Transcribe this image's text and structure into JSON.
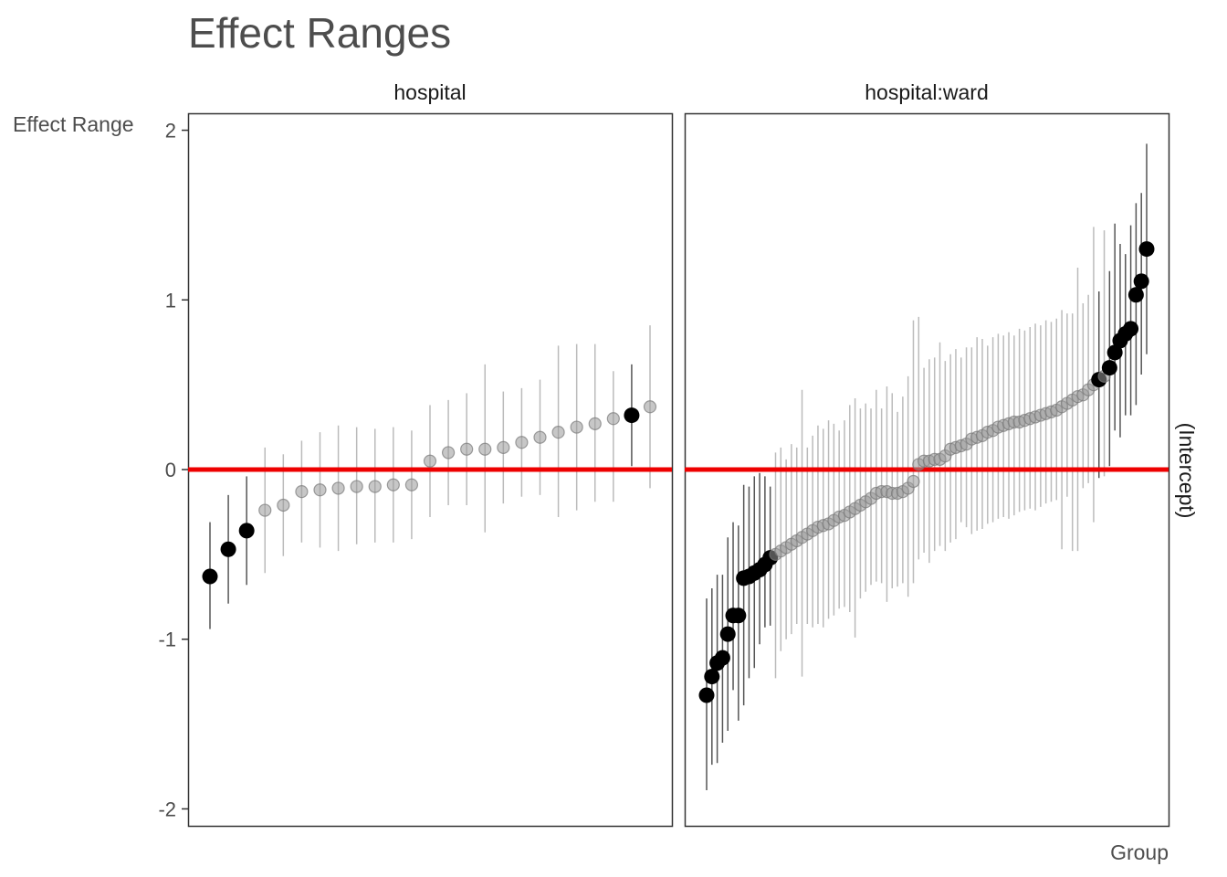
{
  "chart_data": {
    "type": "scatter",
    "title": "Effect Ranges",
    "ylabel": "Effect Range",
    "xlabel": "Group",
    "facet_row_label": "(Intercept)",
    "ylim": [
      -2.1,
      2.1
    ],
    "y_ticks": [
      2,
      1,
      0,
      -1,
      -2
    ],
    "y_tick_labels": [
      "2",
      "1",
      "0",
      "-1",
      "-2"
    ],
    "reference_line": 0,
    "colors": {
      "reference_line": "#ee0000",
      "significant": "#000000",
      "non_significant": "#999999",
      "interval_significant": "#555555",
      "interval_non_significant": "#bbbbbb",
      "panel_border": "#333333"
    },
    "panels": [
      {
        "name": "hospital",
        "points": [
          {
            "y": -0.63,
            "lo": -0.94,
            "hi": -0.31,
            "sig": true
          },
          {
            "y": -0.47,
            "lo": -0.79,
            "hi": -0.15,
            "sig": true
          },
          {
            "y": -0.36,
            "lo": -0.68,
            "hi": -0.04,
            "sig": true
          },
          {
            "y": -0.24,
            "lo": -0.61,
            "hi": 0.13,
            "sig": false
          },
          {
            "y": -0.21,
            "lo": -0.51,
            "hi": 0.09,
            "sig": false
          },
          {
            "y": -0.13,
            "lo": -0.43,
            "hi": 0.17,
            "sig": false
          },
          {
            "y": -0.12,
            "lo": -0.46,
            "hi": 0.22,
            "sig": false
          },
          {
            "y": -0.11,
            "lo": -0.48,
            "hi": 0.26,
            "sig": false
          },
          {
            "y": -0.1,
            "lo": -0.44,
            "hi": 0.25,
            "sig": false
          },
          {
            "y": -0.1,
            "lo": -0.43,
            "hi": 0.24,
            "sig": false
          },
          {
            "y": -0.09,
            "lo": -0.43,
            "hi": 0.25,
            "sig": false
          },
          {
            "y": -0.09,
            "lo": -0.41,
            "hi": 0.23,
            "sig": false
          },
          {
            "y": 0.05,
            "lo": -0.28,
            "hi": 0.38,
            "sig": false
          },
          {
            "y": 0.1,
            "lo": -0.21,
            "hi": 0.41,
            "sig": false
          },
          {
            "y": 0.12,
            "lo": -0.21,
            "hi": 0.45,
            "sig": false
          },
          {
            "y": 0.12,
            "lo": -0.37,
            "hi": 0.62,
            "sig": false
          },
          {
            "y": 0.13,
            "lo": -0.2,
            "hi": 0.46,
            "sig": false
          },
          {
            "y": 0.16,
            "lo": -0.16,
            "hi": 0.48,
            "sig": false
          },
          {
            "y": 0.19,
            "lo": -0.15,
            "hi": 0.53,
            "sig": false
          },
          {
            "y": 0.22,
            "lo": -0.28,
            "hi": 0.73,
            "sig": false
          },
          {
            "y": 0.25,
            "lo": -0.24,
            "hi": 0.74,
            "sig": false
          },
          {
            "y": 0.27,
            "lo": -0.19,
            "hi": 0.74,
            "sig": false
          },
          {
            "y": 0.3,
            "lo": -0.19,
            "hi": 0.58,
            "sig": false
          },
          {
            "y": 0.32,
            "lo": 0.02,
            "hi": 0.62,
            "sig": true
          },
          {
            "y": 0.37,
            "lo": -0.11,
            "hi": 0.85,
            "sig": false
          }
        ]
      },
      {
        "name": "hospital:ward",
        "points": [
          {
            "y": -1.33,
            "lo": -1.89,
            "hi": -0.76,
            "sig": true
          },
          {
            "y": -1.22,
            "lo": -1.74,
            "hi": -0.7,
            "sig": true
          },
          {
            "y": -1.14,
            "lo": -1.73,
            "hi": -0.62,
            "sig": true
          },
          {
            "y": -1.11,
            "lo": -1.61,
            "hi": -0.62,
            "sig": true
          },
          {
            "y": -0.97,
            "lo": -1.54,
            "hi": -0.4,
            "sig": true
          },
          {
            "y": -0.86,
            "lo": -1.3,
            "hi": -0.31,
            "sig": true
          },
          {
            "y": -0.86,
            "lo": -1.48,
            "hi": -0.33,
            "sig": true
          },
          {
            "y": -0.64,
            "lo": -1.39,
            "hi": -0.09,
            "sig": true
          },
          {
            "y": -0.63,
            "lo": -1.23,
            "hi": -0.1,
            "sig": true
          },
          {
            "y": -0.61,
            "lo": -1.17,
            "hi": -0.04,
            "sig": true
          },
          {
            "y": -0.59,
            "lo": -1.03,
            "hi": -0.02,
            "sig": true
          },
          {
            "y": -0.56,
            "lo": -0.93,
            "hi": -0.04,
            "sig": true
          },
          {
            "y": -0.52,
            "lo": -0.92,
            "hi": -0.1,
            "sig": true
          },
          {
            "y": -0.5,
            "lo": -1.23,
            "hi": 0.1,
            "sig": false
          },
          {
            "y": -0.48,
            "lo": -1.07,
            "hi": 0.13,
            "sig": false
          },
          {
            "y": -0.46,
            "lo": -1.0,
            "hi": 0.06,
            "sig": false
          },
          {
            "y": -0.44,
            "lo": -0.97,
            "hi": 0.15,
            "sig": false
          },
          {
            "y": -0.42,
            "lo": -0.91,
            "hi": 0.13,
            "sig": false
          },
          {
            "y": -0.4,
            "lo": -1.22,
            "hi": 0.47,
            "sig": false
          },
          {
            "y": -0.38,
            "lo": -0.91,
            "hi": 0.13,
            "sig": false
          },
          {
            "y": -0.36,
            "lo": -0.93,
            "hi": 0.2,
            "sig": false
          },
          {
            "y": -0.34,
            "lo": -0.91,
            "hi": 0.26,
            "sig": false
          },
          {
            "y": -0.33,
            "lo": -0.93,
            "hi": 0.24,
            "sig": false
          },
          {
            "y": -0.32,
            "lo": -0.88,
            "hi": 0.29,
            "sig": false
          },
          {
            "y": -0.3,
            "lo": -0.86,
            "hi": 0.27,
            "sig": false
          },
          {
            "y": -0.28,
            "lo": -0.82,
            "hi": 0.23,
            "sig": false
          },
          {
            "y": -0.27,
            "lo": -0.81,
            "hi": 0.29,
            "sig": false
          },
          {
            "y": -0.25,
            "lo": -0.84,
            "hi": 0.38,
            "sig": false
          },
          {
            "y": -0.23,
            "lo": -0.99,
            "hi": 0.42,
            "sig": false
          },
          {
            "y": -0.21,
            "lo": -0.76,
            "hi": 0.36,
            "sig": false
          },
          {
            "y": -0.19,
            "lo": -0.72,
            "hi": 0.39,
            "sig": false
          },
          {
            "y": -0.17,
            "lo": -0.68,
            "hi": 0.36,
            "sig": false
          },
          {
            "y": -0.14,
            "lo": -0.66,
            "hi": 0.47,
            "sig": false
          },
          {
            "y": -0.13,
            "lo": -0.67,
            "hi": 0.36,
            "sig": false
          },
          {
            "y": -0.13,
            "lo": -0.78,
            "hi": 0.49,
            "sig": false
          },
          {
            "y": -0.14,
            "lo": -0.7,
            "hi": 0.45,
            "sig": false
          },
          {
            "y": -0.14,
            "lo": -0.69,
            "hi": 0.34,
            "sig": false
          },
          {
            "y": -0.13,
            "lo": -0.67,
            "hi": 0.43,
            "sig": false
          },
          {
            "y": -0.11,
            "lo": -0.75,
            "hi": 0.55,
            "sig": false
          },
          {
            "y": -0.07,
            "lo": -0.67,
            "hi": 0.88,
            "sig": false
          },
          {
            "y": 0.03,
            "lo": -0.53,
            "hi": 0.9,
            "sig": false
          },
          {
            "y": 0.05,
            "lo": -0.49,
            "hi": 0.6,
            "sig": false
          },
          {
            "y": 0.05,
            "lo": -0.55,
            "hi": 0.65,
            "sig": false
          },
          {
            "y": 0.06,
            "lo": -0.48,
            "hi": 0.66,
            "sig": false
          },
          {
            "y": 0.06,
            "lo": -0.45,
            "hi": 0.75,
            "sig": false
          },
          {
            "y": 0.08,
            "lo": -0.48,
            "hi": 0.64,
            "sig": false
          },
          {
            "y": 0.12,
            "lo": -0.43,
            "hi": 0.68,
            "sig": false
          },
          {
            "y": 0.13,
            "lo": -0.41,
            "hi": 0.71,
            "sig": false
          },
          {
            "y": 0.14,
            "lo": -0.31,
            "hi": 0.66,
            "sig": false
          },
          {
            "y": 0.15,
            "lo": -0.34,
            "hi": 0.72,
            "sig": false
          },
          {
            "y": 0.18,
            "lo": -0.38,
            "hi": 0.72,
            "sig": false
          },
          {
            "y": 0.19,
            "lo": -0.36,
            "hi": 0.78,
            "sig": false
          },
          {
            "y": 0.2,
            "lo": -0.35,
            "hi": 0.77,
            "sig": false
          },
          {
            "y": 0.22,
            "lo": -0.32,
            "hi": 0.73,
            "sig": false
          },
          {
            "y": 0.23,
            "lo": -0.31,
            "hi": 0.78,
            "sig": false
          },
          {
            "y": 0.25,
            "lo": -0.29,
            "hi": 0.8,
            "sig": false
          },
          {
            "y": 0.26,
            "lo": -0.28,
            "hi": 0.79,
            "sig": false
          },
          {
            "y": 0.27,
            "lo": -0.29,
            "hi": 0.81,
            "sig": false
          },
          {
            "y": 0.28,
            "lo": -0.27,
            "hi": 0.79,
            "sig": false
          },
          {
            "y": 0.28,
            "lo": -0.25,
            "hi": 0.83,
            "sig": false
          },
          {
            "y": 0.29,
            "lo": -0.24,
            "hi": 0.82,
            "sig": false
          },
          {
            "y": 0.3,
            "lo": -0.23,
            "hi": 0.84,
            "sig": false
          },
          {
            "y": 0.31,
            "lo": -0.24,
            "hi": 0.86,
            "sig": false
          },
          {
            "y": 0.32,
            "lo": -0.22,
            "hi": 0.85,
            "sig": false
          },
          {
            "y": 0.33,
            "lo": -0.2,
            "hi": 0.88,
            "sig": false
          },
          {
            "y": 0.34,
            "lo": -0.19,
            "hi": 0.87,
            "sig": false
          },
          {
            "y": 0.35,
            "lo": -0.18,
            "hi": 0.89,
            "sig": false
          },
          {
            "y": 0.37,
            "lo": -0.47,
            "hi": 0.94,
            "sig": false
          },
          {
            "y": 0.39,
            "lo": -0.16,
            "hi": 0.92,
            "sig": false
          },
          {
            "y": 0.41,
            "lo": -0.48,
            "hi": 0.92,
            "sig": false
          },
          {
            "y": 0.43,
            "lo": -0.48,
            "hi": 1.19,
            "sig": false
          },
          {
            "y": 0.44,
            "lo": -0.11,
            "hi": 0.98,
            "sig": false
          },
          {
            "y": 0.47,
            "lo": -0.08,
            "hi": 1.03,
            "sig": false
          },
          {
            "y": 0.5,
            "lo": -0.31,
            "hi": 1.43,
            "sig": false
          },
          {
            "y": 0.53,
            "lo": -0.05,
            "hi": 1.05,
            "sig": true
          },
          {
            "y": 0.55,
            "lo": -0.04,
            "hi": 1.41,
            "sig": false
          },
          {
            "y": 0.6,
            "lo": 0.02,
            "hi": 1.17,
            "sig": true
          },
          {
            "y": 0.69,
            "lo": 0.23,
            "hi": 1.45,
            "sig": true
          },
          {
            "y": 0.76,
            "lo": 0.19,
            "hi": 1.33,
            "sig": true
          },
          {
            "y": 0.8,
            "lo": 0.32,
            "hi": 1.27,
            "sig": true
          },
          {
            "y": 0.83,
            "lo": 0.32,
            "hi": 1.44,
            "sig": true
          },
          {
            "y": 1.03,
            "lo": 0.38,
            "hi": 1.57,
            "sig": true
          },
          {
            "y": 1.11,
            "lo": 0.56,
            "hi": 1.63,
            "sig": true
          },
          {
            "y": 1.3,
            "lo": 0.68,
            "hi": 1.92,
            "sig": true
          }
        ]
      }
    ]
  }
}
